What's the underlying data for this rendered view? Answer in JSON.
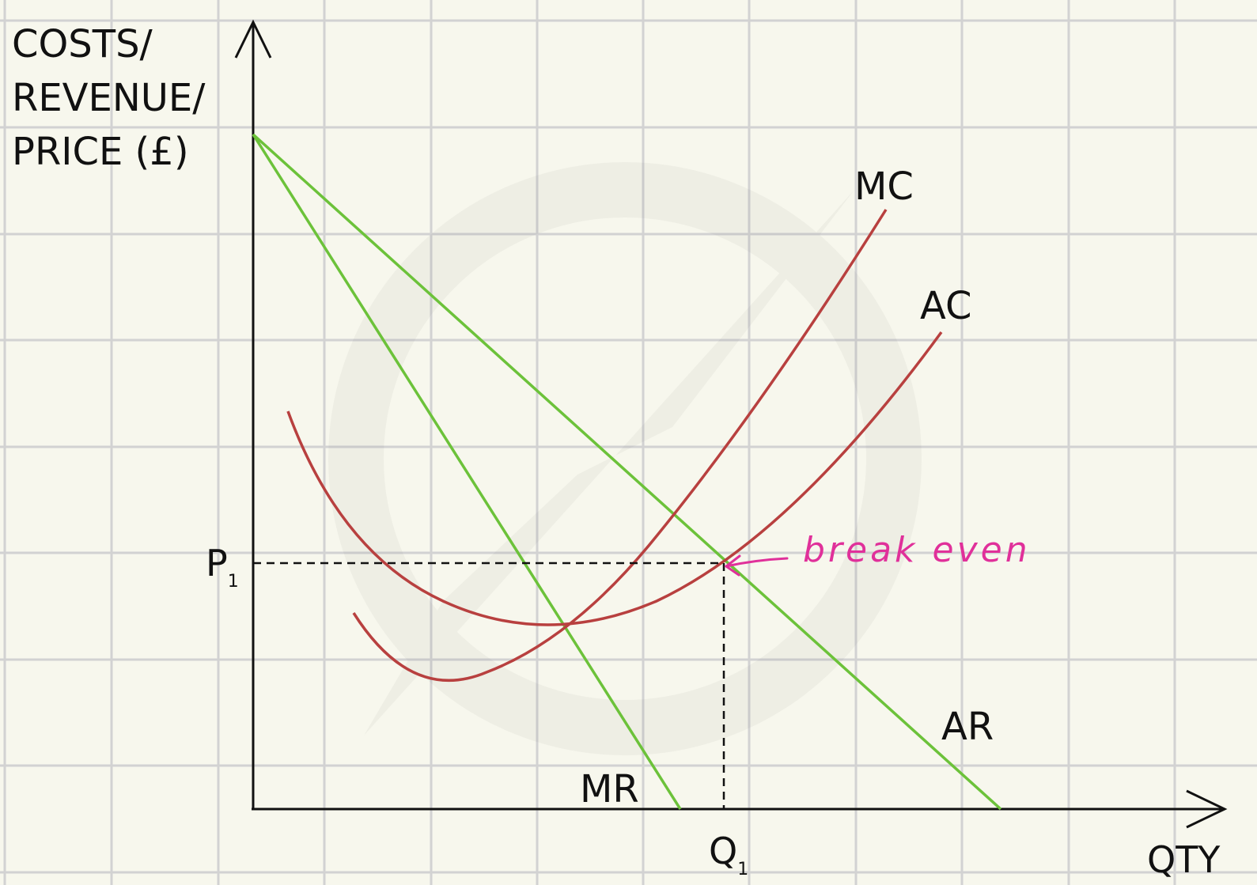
{
  "diagram": {
    "y_axis_label": [
      "COSTS/",
      "REVENUE/",
      "PRICE (£)"
    ],
    "x_axis_label": "QTY",
    "price_label": {
      "main": "P",
      "sub": "1"
    },
    "quantity_label": {
      "main": "Q",
      "sub": "1"
    },
    "curves": {
      "mc": "MC",
      "ac": "AC",
      "ar": "AR",
      "mr": "MR"
    },
    "annotation": "break even",
    "colors": {
      "background": "#f7f7ed",
      "grid": "#d2d2d2",
      "revenue_lines": "#6cc23a",
      "cost_curves": "#b8403f",
      "annotation": "#e0309a",
      "axes": "#111111"
    }
  }
}
